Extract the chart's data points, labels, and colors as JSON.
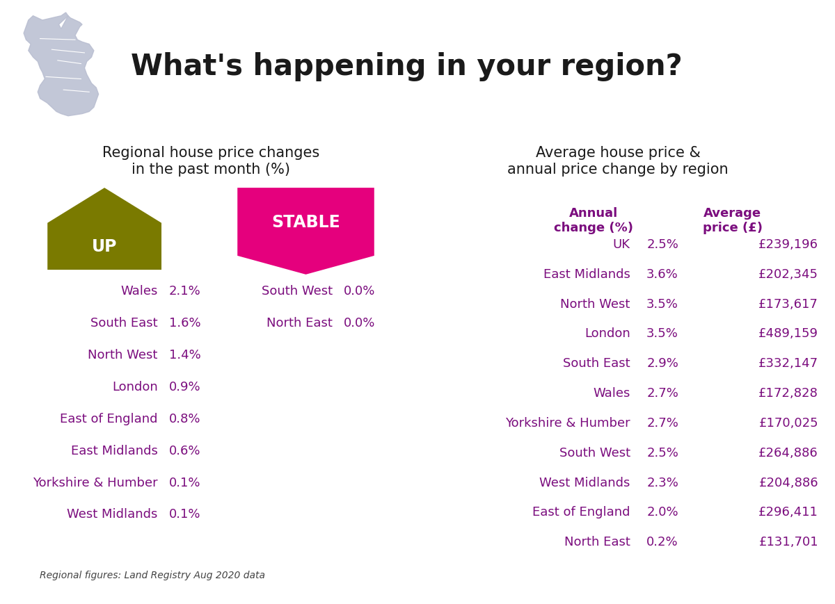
{
  "title": "What's happening in your region?",
  "left_panel_title": "Regional house price changes\nin the past month (%)",
  "left_panel_bg": "#e8e2ee",
  "right_panel_bg": "#e8e2ee",
  "up_color": "#7a7a00",
  "stable_color": "#e5007d",
  "up_label": "UP",
  "stable_label": "STABLE",
  "text_color": "#7b0d7e",
  "footnote": "Regional figures: Land Registry Aug 2020 data",
  "up_regions": [
    [
      "Wales",
      "2.1%"
    ],
    [
      "South East",
      "1.6%"
    ],
    [
      "North West",
      "1.4%"
    ],
    [
      "London",
      "0.9%"
    ],
    [
      "East of England",
      "0.8%"
    ],
    [
      "East Midlands",
      "0.6%"
    ],
    [
      "Yorkshire & Humber",
      "0.1%"
    ],
    [
      "West Midlands",
      "0.1%"
    ]
  ],
  "stable_regions": [
    [
      "South West",
      "0.0%"
    ],
    [
      "North East",
      "0.0%"
    ]
  ],
  "right_panel_title": "Average house price &\nannual price change by region",
  "right_col1_header": "Annual\nchange (%)",
  "right_col2_header": "Average\nprice (£)",
  "right_header_color": "#7b0d7e",
  "right_rows": [
    [
      "UK",
      "2.5%",
      "£239,196"
    ],
    [
      "East Midlands",
      "3.6%",
      "£202,345"
    ],
    [
      "North West",
      "3.5%",
      "£173,617"
    ],
    [
      "London",
      "3.5%",
      "£489,159"
    ],
    [
      "South East",
      "2.9%",
      "£332,147"
    ],
    [
      "Wales",
      "2.7%",
      "£172,828"
    ],
    [
      "Yorkshire & Humber",
      "2.7%",
      "£170,025"
    ],
    [
      "South West",
      "2.5%",
      "£264,886"
    ],
    [
      "West Midlands",
      "2.3%",
      "£204,886"
    ],
    [
      "East of England",
      "2.0%",
      "£296,411"
    ],
    [
      "North East",
      "0.2%",
      "£131,701"
    ]
  ],
  "map_color": "#b8bdd0",
  "title_color": "#1a1a1a",
  "title_fontsize": 30,
  "panel_title_fontsize": 15,
  "row_fontsize": 13,
  "header_fontsize": 13
}
